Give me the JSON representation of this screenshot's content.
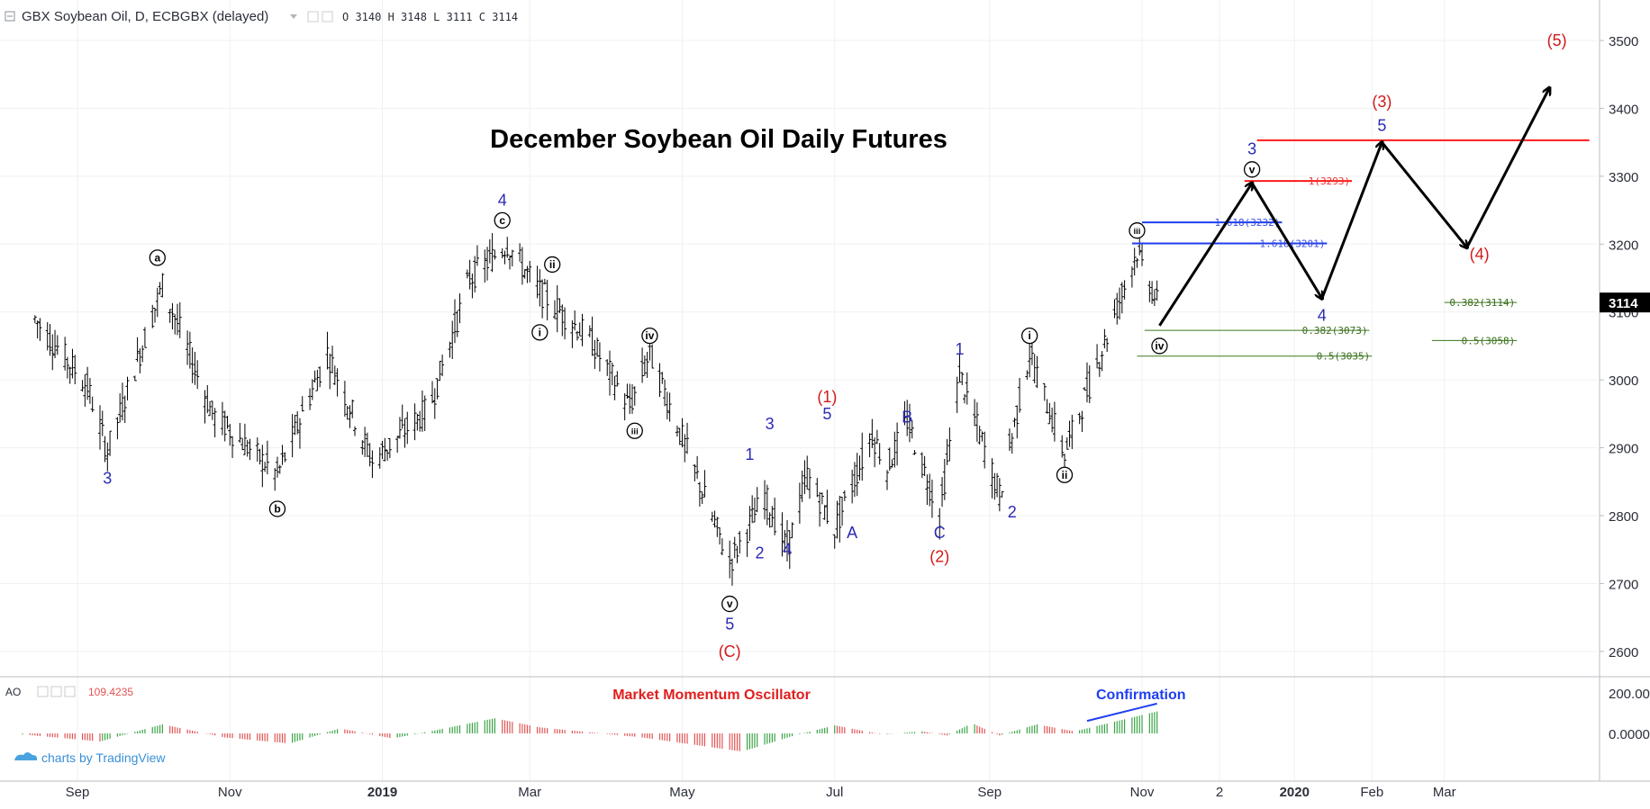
{
  "header": {
    "symbol_title": "GBX Soybean Oil, D, ECBGBX (delayed)",
    "ohlc": "O 3140  H 3148  L 3111  C 3114"
  },
  "title": "December Soybean Oil Daily Futures",
  "oscillator": {
    "name": "AO",
    "value": "109.4235",
    "label": "Market Momentum Oscillator",
    "confirmation": "Confirmation",
    "axis_ticks": [
      "200.0000",
      "0.0000"
    ]
  },
  "watermark": "charts by TradingView",
  "colors": {
    "price_bars": "#000000",
    "wave_blue": "#2a2ab4",
    "wave_red": "#d11a1a",
    "fib_green": "#3a7a1c",
    "osc_up": "#3aa345",
    "osc_down": "#e05353",
    "current_price_bg": "#000000"
  },
  "chart_data": [
    {
      "type": "ohlc",
      "series_name": "GBX Soybean Oil",
      "ylim": [
        2560,
        3560
      ],
      "y_ticks": [
        2600,
        2700,
        2800,
        2900,
        3000,
        3100,
        3200,
        3300,
        3400,
        3500
      ],
      "current_price": 3114,
      "x_ticks": [
        "Sep",
        "Nov",
        "2019",
        "Mar",
        "May",
        "Jul",
        "Sep",
        "Nov",
        "2",
        "2020",
        "Feb",
        "Mar"
      ],
      "key_points": [
        {
          "date": "2018-08-15",
          "price": 3090
        },
        {
          "date": "2018-09-05",
          "price": 2990
        },
        {
          "date": "2018-09-13",
          "price": 2895
        },
        {
          "date": "2018-10-05",
          "price": 3140
        },
        {
          "date": "2018-10-25",
          "price": 2950
        },
        {
          "date": "2018-11-20",
          "price": 2860
        },
        {
          "date": "2018-12-10",
          "price": 3040
        },
        {
          "date": "2018-12-28",
          "price": 2880
        },
        {
          "date": "2019-01-20",
          "price": 2960
        },
        {
          "date": "2019-02-05",
          "price": 3150
        },
        {
          "date": "2019-02-20",
          "price": 3200
        },
        {
          "date": "2019-03-05",
          "price": 3130
        },
        {
          "date": "2019-03-25",
          "price": 3060
        },
        {
          "date": "2019-04-10",
          "price": 2960
        },
        {
          "date": "2019-04-18",
          "price": 3040
        },
        {
          "date": "2019-05-20",
          "price": 2730
        },
        {
          "date": "2019-06-03",
          "price": 2830
        },
        {
          "date": "2019-06-12",
          "price": 2750
        },
        {
          "date": "2019-06-20",
          "price": 2860
        },
        {
          "date": "2019-07-01",
          "price": 2780
        },
        {
          "date": "2019-07-16",
          "price": 2920
        },
        {
          "date": "2019-07-22",
          "price": 2870
        },
        {
          "date": "2019-07-30",
          "price": 2940
        },
        {
          "date": "2019-08-12",
          "price": 2800
        },
        {
          "date": "2019-08-20",
          "price": 3010
        },
        {
          "date": "2019-09-05",
          "price": 2830
        },
        {
          "date": "2019-09-17",
          "price": 3040
        },
        {
          "date": "2019-10-01",
          "price": 2890
        },
        {
          "date": "2019-10-30",
          "price": 3190
        },
        {
          "date": "2019-11-07",
          "price": 3114
        }
      ],
      "wave_labels": [
        {
          "text": "3",
          "color": "blue",
          "date": "2018-09-13",
          "price": 2855
        },
        {
          "text": "a",
          "color": "circle",
          "date": "2018-10-03",
          "price": 3180
        },
        {
          "text": "b",
          "color": "circle",
          "date": "2018-11-20",
          "price": 2810
        },
        {
          "text": "4",
          "color": "blue",
          "date": "2019-02-18",
          "price": 3265
        },
        {
          "text": "c",
          "color": "circle",
          "date": "2019-02-18",
          "price": 3235
        },
        {
          "text": "i",
          "color": "circle",
          "date": "2019-03-05",
          "price": 3070
        },
        {
          "text": "ii",
          "color": "circle",
          "date": "2019-03-10",
          "price": 3170
        },
        {
          "text": "iii",
          "color": "circle",
          "date": "2019-04-12",
          "price": 2925
        },
        {
          "text": "iv",
          "color": "circle",
          "date": "2019-04-18",
          "price": 3065
        },
        {
          "text": "v",
          "color": "circle",
          "date": "2019-05-20",
          "price": 2670
        },
        {
          "text": "5",
          "color": "blue",
          "date": "2019-05-20",
          "price": 2640
        },
        {
          "text": "(C)",
          "color": "red",
          "date": "2019-05-20",
          "price": 2600
        },
        {
          "text": "1",
          "color": "blue",
          "date": "2019-05-28",
          "price": 2890
        },
        {
          "text": "3",
          "color": "blue",
          "date": "2019-06-05",
          "price": 2935
        },
        {
          "text": "2",
          "color": "blue",
          "date": "2019-06-01",
          "price": 2745
        },
        {
          "text": "4",
          "color": "blue",
          "date": "2019-06-12",
          "price": 2750
        },
        {
          "text": "(1)",
          "color": "red",
          "date": "2019-06-28",
          "price": 2975
        },
        {
          "text": "5",
          "color": "blue",
          "date": "2019-06-28",
          "price": 2950
        },
        {
          "text": "A",
          "color": "blue",
          "date": "2019-07-08",
          "price": 2775
        },
        {
          "text": "B",
          "color": "blue",
          "date": "2019-07-30",
          "price": 2945
        },
        {
          "text": "C",
          "color": "blue",
          "date": "2019-08-12",
          "price": 2775
        },
        {
          "text": "(2)",
          "color": "red",
          "date": "2019-08-12",
          "price": 2740
        },
        {
          "text": "1",
          "color": "blue",
          "date": "2019-08-20",
          "price": 3045
        },
        {
          "text": "2",
          "color": "blue",
          "date": "2019-09-10",
          "price": 2805
        },
        {
          "text": "i",
          "color": "circle",
          "date": "2019-09-17",
          "price": 3065
        },
        {
          "text": "ii",
          "color": "circle",
          "date": "2019-10-01",
          "price": 2860
        },
        {
          "text": "iii",
          "color": "circle",
          "date": "2019-10-30",
          "price": 3220
        },
        {
          "text": "iv",
          "color": "circle",
          "date": "2019-11-08",
          "price": 3050
        },
        {
          "text": "3",
          "color": "blue",
          "date": "2019-12-15",
          "price": 3340
        },
        {
          "text": "v",
          "color": "circle",
          "date": "2019-12-15",
          "price": 3310
        },
        {
          "text": "4",
          "color": "blue",
          "date": "2020-01-12",
          "price": 3095
        },
        {
          "text": "(3)",
          "color": "red",
          "date": "2020-02-05",
          "price": 3410
        },
        {
          "text": "5",
          "color": "blue",
          "date": "2020-02-05",
          "price": 3375
        },
        {
          "text": "(4)",
          "color": "red",
          "date": "2020-03-15",
          "price": 3185
        },
        {
          "text": "(5)",
          "color": "red",
          "date": "2020-04-15",
          "price": 3500
        }
      ],
      "projection_path": [
        {
          "date": "2019-11-08",
          "price": 3080
        },
        {
          "date": "2019-12-15",
          "price": 3290
        },
        {
          "date": "2020-01-12",
          "price": 3120
        },
        {
          "date": "2020-02-05",
          "price": 3350
        },
        {
          "date": "2020-03-10",
          "price": 3195
        },
        {
          "date": "2020-04-12",
          "price": 3430
        }
      ],
      "fib_levels": [
        {
          "label": "1.618(3232)",
          "price": 3232,
          "color": "blue",
          "from": "2019-11-01",
          "to": "2019-12-27"
        },
        {
          "label": "1.618(3201)",
          "price": 3201,
          "color": "blue",
          "from": "2019-10-28",
          "to": "2020-01-14"
        },
        {
          "label": "1(3293)",
          "price": 3293,
          "color": "red",
          "from": "2019-12-12",
          "to": "2020-01-24"
        },
        {
          "label": "",
          "price": 3353,
          "color": "red",
          "from": "2019-12-17",
          "to": "2020-04-28"
        },
        {
          "label": "0.382(3073)",
          "price": 3073,
          "color": "green",
          "from": "2019-11-02",
          "to": "2020-01-31"
        },
        {
          "label": "0.5(3035)",
          "price": 3035,
          "color": "green",
          "from": "2019-10-30",
          "to": "2020-02-01"
        },
        {
          "label": "0.382(3114)",
          "price": 3114,
          "color": "green",
          "from": "2020-03-01",
          "to": "2020-03-30"
        },
        {
          "label": "0.5(3058)",
          "price": 3058,
          "color": "green",
          "from": "2020-02-25",
          "to": "2020-03-30"
        }
      ]
    },
    {
      "type": "bar",
      "series_name": "AO",
      "ylim": [
        -100,
        220
      ],
      "key_points": [
        {
          "date": "2018-08-10",
          "value": -5
        },
        {
          "date": "2018-09-10",
          "value": -40
        },
        {
          "date": "2018-10-05",
          "value": 45
        },
        {
          "date": "2018-10-30",
          "value": -20
        },
        {
          "date": "2018-11-25",
          "value": -50
        },
        {
          "date": "2018-12-15",
          "value": 25
        },
        {
          "date": "2019-01-05",
          "value": -25
        },
        {
          "date": "2019-01-20",
          "value": 10
        },
        {
          "date": "2019-02-15",
          "value": 75
        },
        {
          "date": "2019-03-05",
          "value": 30
        },
        {
          "date": "2019-04-15",
          "value": -20
        },
        {
          "date": "2019-05-25",
          "value": -90
        },
        {
          "date": "2019-06-15",
          "value": -10
        },
        {
          "date": "2019-07-01",
          "value": 40
        },
        {
          "date": "2019-07-20",
          "value": -5
        },
        {
          "date": "2019-08-05",
          "value": 10
        },
        {
          "date": "2019-08-15",
          "value": -10
        },
        {
          "date": "2019-08-25",
          "value": 50
        },
        {
          "date": "2019-09-05",
          "value": -10
        },
        {
          "date": "2019-09-20",
          "value": 45
        },
        {
          "date": "2019-10-05",
          "value": 10
        },
        {
          "date": "2019-10-15",
          "value": 40
        },
        {
          "date": "2019-11-07",
          "value": 109
        }
      ]
    }
  ]
}
